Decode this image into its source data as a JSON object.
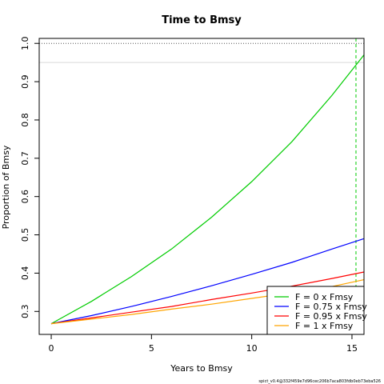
{
  "chart_data": {
    "type": "line",
    "title": "Time to Bmsy",
    "xlabel": "Years to Bmsy",
    "ylabel": "Proportion of Bmsy",
    "xlim": [
      -0.6,
      15.6
    ],
    "ylim": [
      0.24,
      1.013
    ],
    "xticks": [
      0,
      5,
      10,
      15
    ],
    "yticks": [
      0.3,
      0.4,
      0.5,
      0.6,
      0.7,
      0.8,
      0.9,
      1.0
    ],
    "ytick_labels": [
      "0.3",
      "0.4",
      "0.5",
      "0.6",
      "0.7",
      "0.8",
      "0.9",
      "1.0"
    ],
    "grid": false,
    "legend_position": "bottom-right",
    "reference_lines": [
      {
        "orientation": "horizontal",
        "value": 1.0,
        "style": "dotted",
        "color": "#555555"
      },
      {
        "orientation": "horizontal",
        "value": 0.95,
        "style": "solid",
        "color": "#d9d9d9"
      },
      {
        "orientation": "vertical",
        "value": 15.2,
        "style": "dashed",
        "color": "#00cc00"
      }
    ],
    "series": [
      {
        "name": "F = 0 x Fmsy",
        "color": "#00cc00",
        "x": [
          0,
          2,
          4,
          6,
          8,
          10,
          12,
          14,
          15.6
        ],
        "y": [
          0.268,
          0.326,
          0.391,
          0.463,
          0.546,
          0.639,
          0.743,
          0.864,
          0.97
        ]
      },
      {
        "name": "F = 0.75 x Fmsy",
        "color": "#0000ff",
        "x": [
          0,
          2,
          4,
          6,
          8,
          10,
          12,
          14,
          15.6
        ],
        "y": [
          0.268,
          0.289,
          0.313,
          0.339,
          0.367,
          0.397,
          0.428,
          0.463,
          0.49
        ]
      },
      {
        "name": "F = 0.95 x Fmsy",
        "color": "#ff0000",
        "x": [
          0,
          2,
          4,
          6,
          8,
          10,
          12,
          14,
          15.6
        ],
        "y": [
          0.268,
          0.283,
          0.298,
          0.313,
          0.331,
          0.348,
          0.366,
          0.386,
          0.403
        ]
      },
      {
        "name": "F = 1 x Fmsy",
        "color": "#ffa500",
        "x": [
          0,
          2,
          4,
          6,
          8,
          10,
          12,
          14,
          15.6
        ],
        "y": [
          0.268,
          0.28,
          0.292,
          0.306,
          0.319,
          0.334,
          0.349,
          0.365,
          0.383
        ]
      }
    ]
  },
  "footer_text": "spict_v0.4@332f459e7d96cec206b7aca803fdb0eb73eba526"
}
